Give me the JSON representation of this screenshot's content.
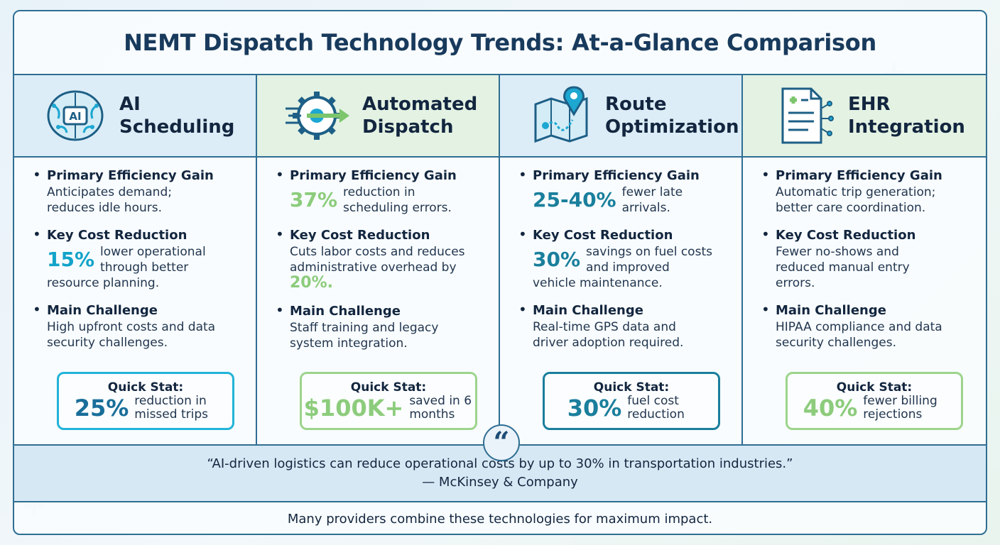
{
  "title": "NEMT Dispatch Technology Trends: At-a-Glance Comparison",
  "columns": [
    {
      "icon": "brain-ai-icon",
      "icon_text": "AI",
      "heading_line1": "AI",
      "heading_line2": "Scheduling",
      "efficiency_label": "Primary Efficiency Gain",
      "efficiency_text": "Anticipates demand; reduces idle hours.",
      "cost_label": "Key Cost Reduction",
      "cost_big": "15%",
      "cost_text": "lower operational through better",
      "cost_text2": "resource planning.",
      "challenge_label": "Main Challenge",
      "challenge_text": "High upfront costs and data security challenges.",
      "quick_label": "Quick Stat:",
      "quick_big": "25%",
      "quick_text": "reduction in missed trips"
    },
    {
      "icon": "gear-arrow-icon",
      "heading_line1": "Automated",
      "heading_line2": "Dispatch",
      "efficiency_label": "Primary Efficiency Gain",
      "efficiency_big": "37%",
      "efficiency_text": "reduction in scheduling errors.",
      "cost_label": "Key Cost Reduction",
      "cost_text": "Cuts labor costs and reduces administrative overhead by",
      "cost_inline_big": "20%.",
      "challenge_label": "Main Challenge",
      "challenge_text": "Staff training and legacy system integration.",
      "quick_label": "Quick Stat:",
      "quick_big": "$100K+",
      "quick_text": "saved in 6 months"
    },
    {
      "icon": "map-pin-icon",
      "heading_line1": "Route",
      "heading_line2": "Optimization",
      "efficiency_label": "Primary Efficiency Gain",
      "efficiency_big": "25-40%",
      "efficiency_text": "fewer late arrivals.",
      "cost_label": "Key Cost Reduction",
      "cost_big": "30%",
      "cost_text": "savings on fuel costs and improved",
      "cost_text2": "vehicle maintenance.",
      "challenge_label": "Main Challenge",
      "challenge_text": "Real-time GPS data and driver adoption required.",
      "quick_label": "Quick Stat:",
      "quick_big": "30%",
      "quick_text": "fuel cost reduction"
    },
    {
      "icon": "medical-record-icon",
      "heading_line1": "EHR",
      "heading_line2": "Integration",
      "efficiency_label": "Primary Efficiency Gain",
      "efficiency_text": "Automatic trip generation; better care coordination.",
      "cost_label": "Key Cost Reduction",
      "cost_text": "Fewer no-shows and reduced manual entry errors.",
      "challenge_label": "Main Challenge",
      "challenge_text": "HIPAA compliance and data security challenges.",
      "quick_label": "Quick Stat:",
      "quick_big": "40%",
      "quick_text": "fewer billing rejections"
    }
  ],
  "quote": {
    "mark": "“",
    "text": "“AI-driven logistics can reduce operational costs by up to 30% in transportation industries.”",
    "source": "— McKinsey & Company"
  },
  "footer": "Many providers combine these technologies for maximum impact.",
  "colors": {
    "cyan": "#13a3c9",
    "green": "#8ccc7c",
    "teal": "#1a7f9c",
    "navy": "#183a5c"
  }
}
